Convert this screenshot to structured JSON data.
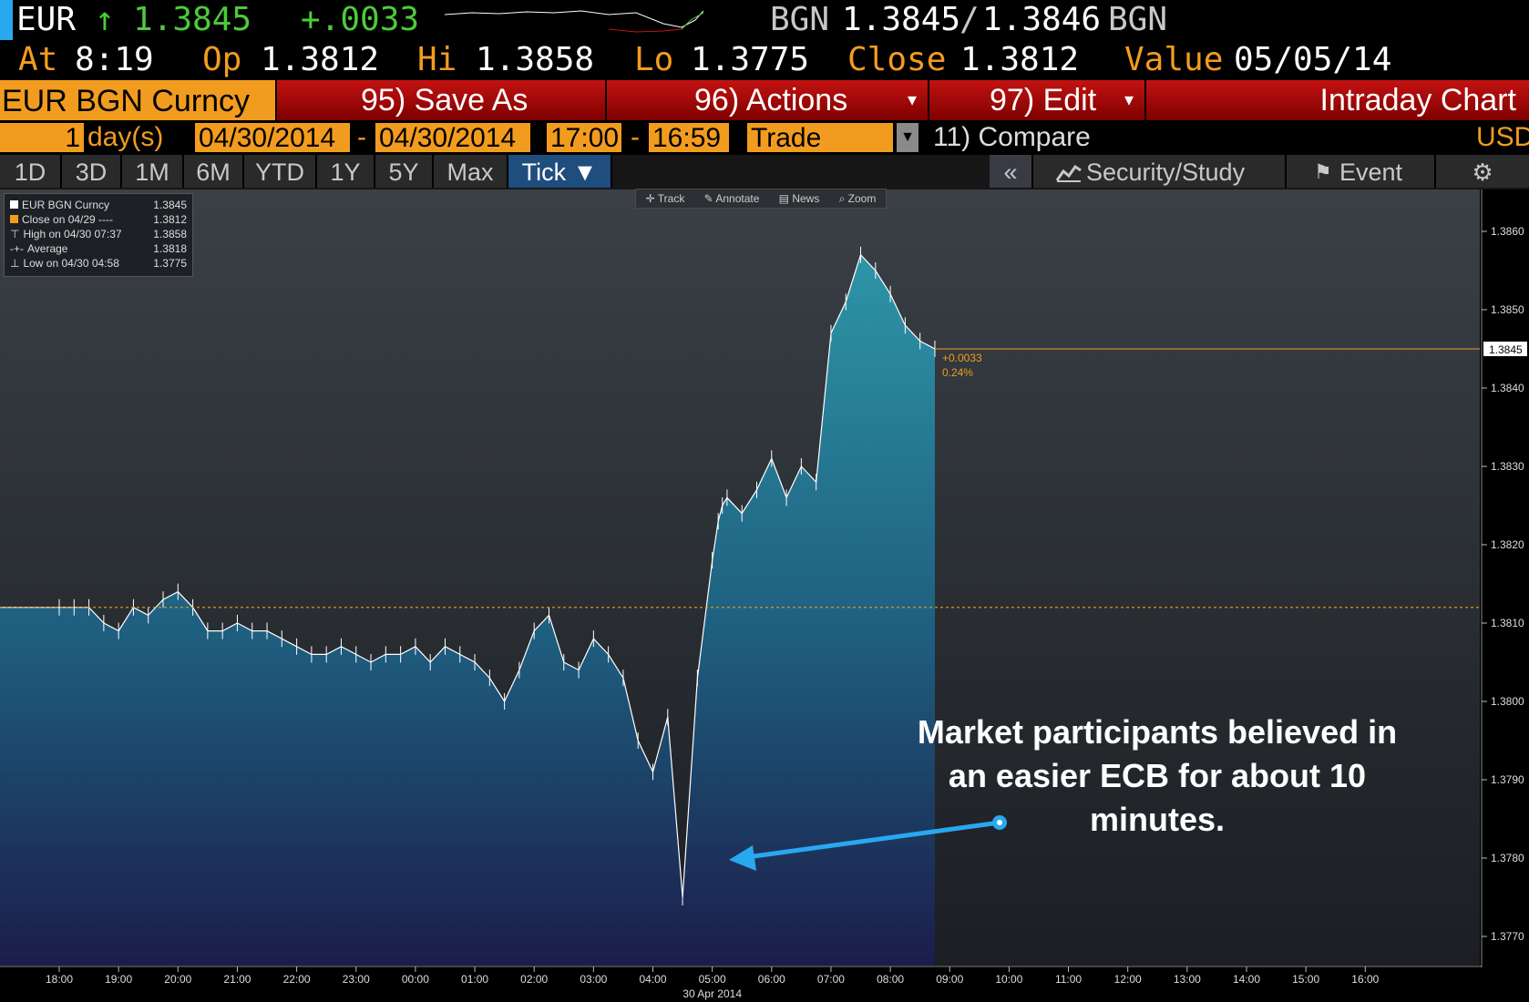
{
  "quote": {
    "currency": "EUR",
    "arrow": "↑",
    "last": "1.3845",
    "change": "+.0033",
    "source1": "BGN",
    "bid": "1.3845",
    "slash": "/",
    "ask": "1.3846",
    "source2": "BGN"
  },
  "stats": {
    "at_label": "At",
    "at_value": "8:19",
    "op_label": "Op",
    "op_value": "1.3812",
    "hi_label": "Hi",
    "hi_value": "1.3858",
    "lo_label": "Lo",
    "lo_value": "1.3775",
    "close_label": "Close",
    "close_value": "1.3812",
    "value_label": "Value",
    "value_value": "05/05/14"
  },
  "toolbar": {
    "ticker": "EUR BGN Curncy",
    "save_as": "95) Save As",
    "actions": "96) Actions",
    "edit": "97) Edit",
    "chart_title": "Intraday Chart"
  },
  "params": {
    "days_value": "1",
    "days_unit": "day(s)",
    "start_date": "04/30/2014",
    "dash": "-",
    "end_date": "04/30/2014",
    "start_time": "17:00",
    "end_time": "16:59",
    "event_type": "Trade",
    "compare": "11) Compare",
    "currency": "USD"
  },
  "periods": [
    "1D",
    "3D",
    "1M",
    "6M",
    "YTD",
    "1Y",
    "5Y",
    "Max",
    "Tick ▼"
  ],
  "right_toolbar": {
    "collapse": "«",
    "security_study": "Security/Study",
    "event": "Event"
  },
  "chart_tools": [
    "Track",
    "Annotate",
    "News",
    "Zoom"
  ],
  "legend": [
    {
      "label": "EUR BGN Curncy",
      "value": "1.3845"
    },
    {
      "label": "Close on 04/29 ----",
      "value": "1.3812"
    },
    {
      "label": "High on 04/30 07:37",
      "value": "1.3858"
    },
    {
      "label": "Average",
      "value": "1.3818"
    },
    {
      "label": "Low on 04/30 04:58",
      "value": "1.3775"
    }
  ],
  "annotation": "Market participants believed in an easier ECB for about 10 minutes.",
  "colors": {
    "orange": "#f29c1f",
    "green": "#4ccc3a",
    "red_button": "#c41212",
    "area_top": "#2d8a9e",
    "area_bottom": "#1a1f4a",
    "arrow": "#29a8f0"
  },
  "chart_data": {
    "type": "area",
    "title": "",
    "xlabel": "30 Apr 2014",
    "ylabel": "",
    "x_ticks": [
      "18:00",
      "19:00",
      "20:00",
      "21:00",
      "22:00",
      "23:00",
      "00:00",
      "01:00",
      "02:00",
      "03:00",
      "04:00",
      "05:00",
      "06:00",
      "07:00",
      "08:00",
      "09:00",
      "10:00",
      "11:00",
      "12:00",
      "13:00",
      "14:00",
      "15:00",
      "16:00"
    ],
    "y_ticks": [
      "1.3860",
      "1.3850",
      "1.3840",
      "1.3830",
      "1.3820",
      "1.3810",
      "1.3800",
      "1.3790",
      "1.3780",
      "1.3770"
    ],
    "ylim": [
      1.3768,
      1.3863
    ],
    "series": [
      {
        "name": "EUR BGN Curncy",
        "x_hours": [
          0,
          0.25,
          0.5,
          0.75,
          1,
          1.25,
          1.5,
          1.75,
          2,
          2.25,
          2.5,
          2.75,
          3,
          3.25,
          3.5,
          3.75,
          4,
          4.25,
          4.5,
          4.75,
          5,
          5.25,
          5.5,
          5.75,
          6,
          6.25,
          6.5,
          6.75,
          7,
          7.25,
          7.5,
          7.75,
          8,
          8.25,
          8.5,
          8.75,
          9,
          9.25,
          9.5,
          9.75,
          10,
          10.25,
          10.5,
          10.75,
          11,
          11.1,
          11.17,
          11.25,
          11.5,
          11.75,
          12,
          12.25,
          12.5,
          12.75,
          13,
          13.25,
          13.5,
          13.75,
          14,
          14.25,
          14.5,
          14.75
        ],
        "values": [
          1.3812,
          1.3812,
          1.3812,
          1.381,
          1.3809,
          1.3812,
          1.3811,
          1.3813,
          1.3814,
          1.3812,
          1.3809,
          1.3809,
          1.381,
          1.3809,
          1.3809,
          1.3808,
          1.3807,
          1.3806,
          1.3806,
          1.3807,
          1.3806,
          1.3805,
          1.3806,
          1.3806,
          1.3807,
          1.3805,
          1.3807,
          1.3806,
          1.3805,
          1.3803,
          1.38,
          1.3804,
          1.3809,
          1.3811,
          1.3805,
          1.3804,
          1.3808,
          1.3806,
          1.3803,
          1.3795,
          1.3791,
          1.3798,
          1.3775,
          1.3803,
          1.3818,
          1.3823,
          1.3825,
          1.3826,
          1.3824,
          1.3827,
          1.3831,
          1.3826,
          1.383,
          1.3828,
          1.3847,
          1.3851,
          1.3857,
          1.3855,
          1.3852,
          1.3848,
          1.3846,
          1.3845
        ]
      }
    ],
    "prev_close": 1.3812,
    "last": 1.3845,
    "change_label": "+0.0033",
    "change_pct_label": "0.24%",
    "last_label": "1.3845",
    "grid": false,
    "legend_position": "top-left"
  }
}
